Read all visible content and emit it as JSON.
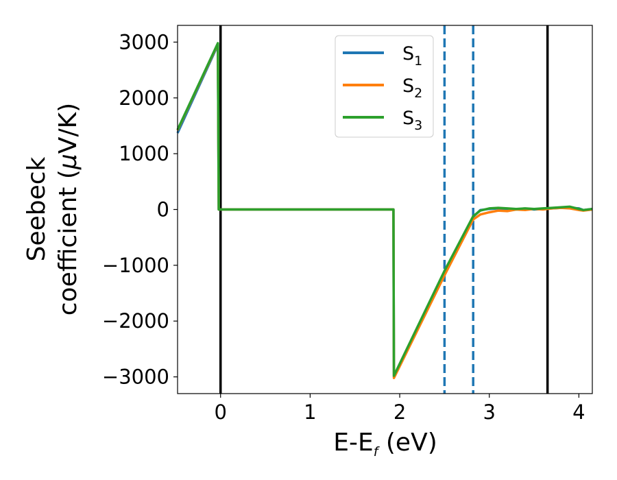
{
  "chart_data": {
    "type": "line",
    "xlabel": "E-E",
    "xlabel_sub": "f",
    "xlabel_unit": " (eV)",
    "ylabel_line1": "Seebeck",
    "ylabel_line2": "coefficient  (",
    "ylabel_mu": "μ",
    "ylabel_unit": "V/K)",
    "xlim": [
      -0.48,
      4.15
    ],
    "ylim": [
      -3300,
      3300
    ],
    "xticks": [
      0,
      1,
      2,
      3,
      4
    ],
    "xtick_labels": [
      "0",
      "1",
      "2",
      "3",
      "4"
    ],
    "yticks": [
      3000,
      2000,
      1000,
      0,
      -1000,
      -2000,
      -3000
    ],
    "ytick_labels": [
      "3000",
      "2000",
      "1000",
      "0",
      "−1000",
      "−2000",
      "−3000"
    ],
    "legend_position": "upper-center",
    "grid": false,
    "vlines": [
      {
        "x": 0.0,
        "style": "solid",
        "color": "#000000"
      },
      {
        "x": 3.65,
        "style": "solid",
        "color": "#000000"
      },
      {
        "x": 2.5,
        "style": "dashed",
        "color": "#1f77b4"
      },
      {
        "x": 2.82,
        "style": "dashed",
        "color": "#1f77b4"
      }
    ],
    "series": [
      {
        "name": "S",
        "sub": "1",
        "color": "#1f77b4",
        "x": [
          -0.48,
          -0.03,
          -0.02,
          1.93,
          1.935,
          2.5,
          2.82,
          2.9,
          3.0,
          3.1,
          3.2,
          3.3,
          3.4,
          3.5,
          3.6,
          3.7,
          3.8,
          3.9,
          4.0,
          4.05,
          4.15
        ],
        "y": [
          1370,
          2950,
          0,
          0,
          -3000,
          -1130,
          -130,
          -10,
          10,
          20,
          10,
          5,
          15,
          0,
          10,
          20,
          30,
          30,
          20,
          -10,
          10
        ]
      },
      {
        "name": "S",
        "sub": "2",
        "color": "#ff7f0e",
        "x": [
          -0.48,
          -0.03,
          -0.02,
          1.93,
          1.935,
          2.5,
          2.82,
          2.9,
          3.0,
          3.1,
          3.2,
          3.3,
          3.4,
          3.5,
          3.6,
          3.7,
          3.8,
          3.9,
          4.0,
          4.05,
          4.15
        ],
        "y": [
          1420,
          2970,
          0,
          0,
          -3020,
          -1180,
          -180,
          -90,
          -50,
          -20,
          -30,
          0,
          -10,
          10,
          0,
          20,
          30,
          20,
          -10,
          -20,
          0
        ]
      },
      {
        "name": "S",
        "sub": "3",
        "color": "#2ca02c",
        "x": [
          -0.48,
          -0.03,
          -0.02,
          1.93,
          1.935,
          2.5,
          2.82,
          2.9,
          3.0,
          3.1,
          3.2,
          3.3,
          3.4,
          3.5,
          3.6,
          3.7,
          3.8,
          3.9,
          4.0,
          4.05,
          4.15
        ],
        "y": [
          1430,
          2980,
          0,
          0,
          -2980,
          -1100,
          -120,
          -20,
          20,
          30,
          20,
          10,
          20,
          10,
          20,
          30,
          40,
          50,
          10,
          -10,
          10
        ]
      }
    ]
  }
}
